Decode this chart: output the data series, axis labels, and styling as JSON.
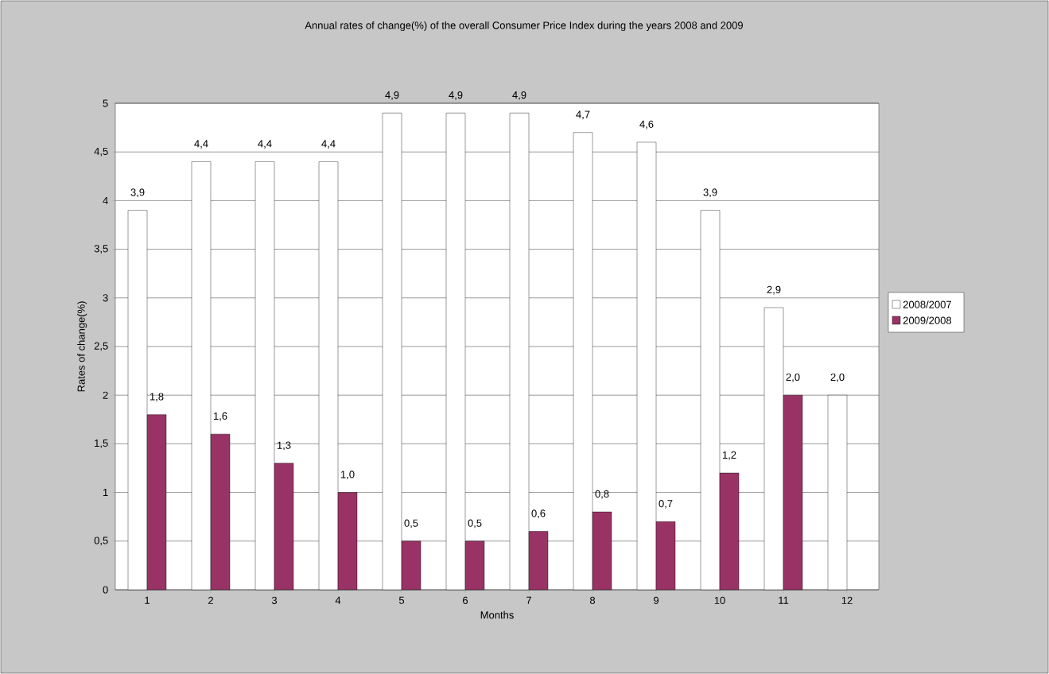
{
  "chart_data": {
    "type": "bar",
    "title": "Annual rates of change(%) of the overall Consumer Price Index during the years 2008 and 2009",
    "xlabel": "Months",
    "ylabel": "Rates of change(%)",
    "categories": [
      "1",
      "2",
      "3",
      "4",
      "5",
      "6",
      "7",
      "8",
      "9",
      "10",
      "11",
      "12"
    ],
    "series": [
      {
        "name": "2008/2007",
        "color": "#ffffff",
        "values": [
          3.9,
          4.4,
          4.4,
          4.4,
          4.9,
          4.9,
          4.9,
          4.7,
          4.6,
          3.9,
          2.9,
          2.0
        ],
        "value_labels": [
          "3,9",
          "4,4",
          "4,4",
          "4,4",
          "4,9",
          "4,9",
          "4,9",
          "4,7",
          "4,6",
          "3,9",
          "2,9",
          "2,0"
        ]
      },
      {
        "name": "2009/2008",
        "color": "#993366",
        "values": [
          1.8,
          1.6,
          1.3,
          1.0,
          0.5,
          0.5,
          0.6,
          0.8,
          0.7,
          1.2,
          2.0,
          null
        ],
        "value_labels": [
          "1,8",
          "1,6",
          "1,3",
          "1,0",
          "0,5",
          "0,5",
          "0,6",
          "0,8",
          "0,7",
          "1,2",
          "2,0",
          null
        ]
      }
    ],
    "ylim": [
      0,
      5
    ],
    "yticks": [
      0,
      {
        "value": 0.5,
        "label": "0,5"
      },
      1,
      {
        "value": 1.5,
        "label": "1,5"
      },
      2,
      {
        "value": 2.5,
        "label": "2,5"
      },
      3,
      {
        "value": 3.5,
        "label": "3,5"
      },
      4,
      {
        "value": 4.5,
        "label": "4,5"
      },
      5
    ],
    "grid": "y",
    "legend": "right"
  }
}
